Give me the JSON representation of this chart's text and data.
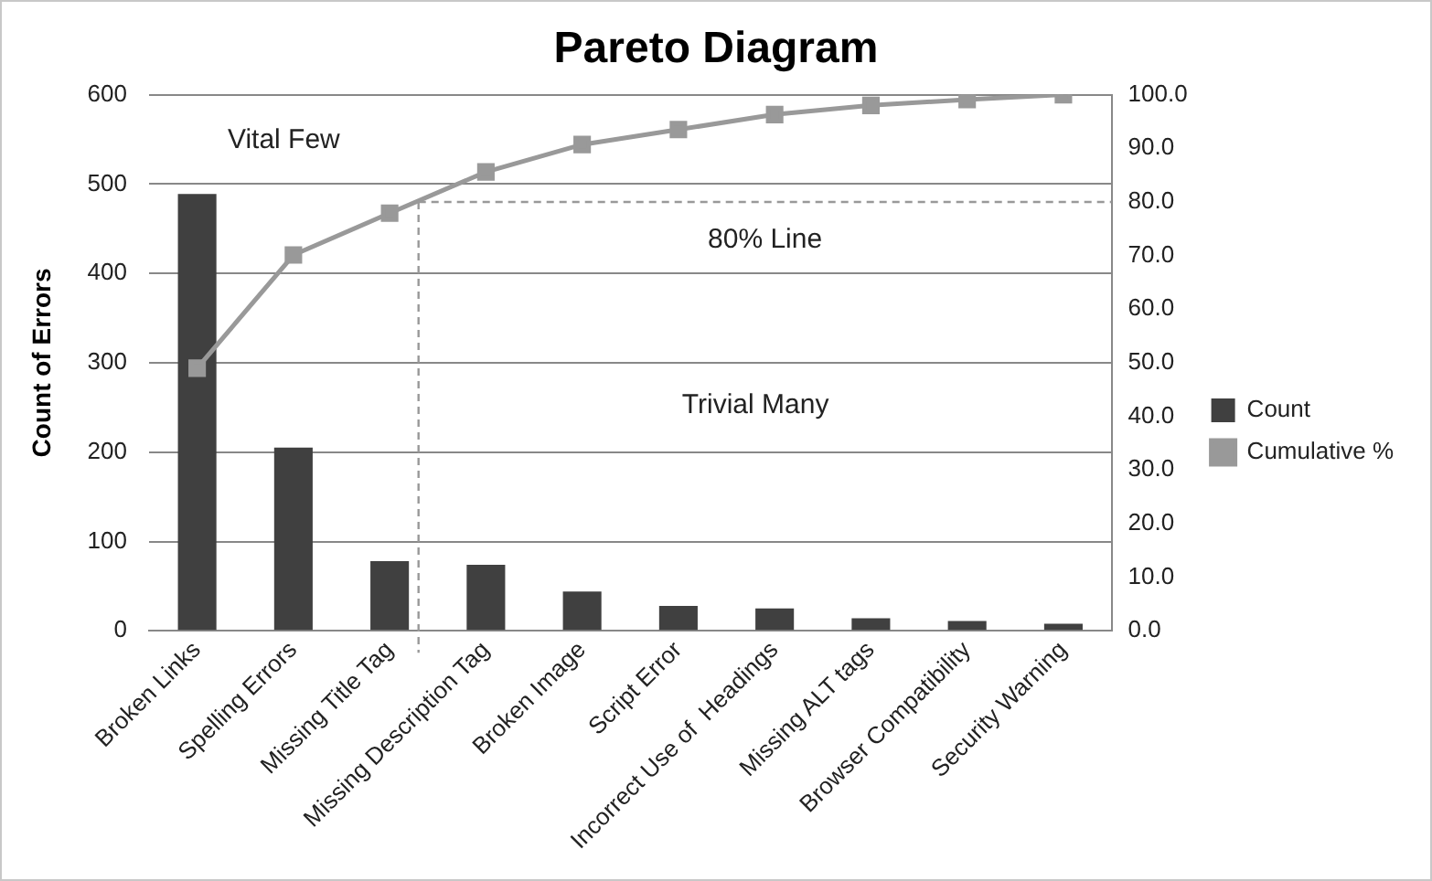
{
  "chart_data": {
    "type": "bar",
    "title": "Pareto Diagram",
    "ylabel": "Count of Errors",
    "categories": [
      "Broken Links",
      "Spelling Errors",
      "Missing Title Tag",
      "Missing Description Tag",
      "Broken Image",
      "Script Error",
      "Incorrect Use of  Headings",
      "Missing ALT tags",
      "Browser Compatibility",
      "Security Warning"
    ],
    "series": [
      {
        "name": "Count",
        "color": "#404040",
        "values": [
          489,
          205,
          78,
          74,
          44,
          28,
          25,
          14,
          11,
          8
        ]
      },
      {
        "name": "Cumulative %",
        "type": "line",
        "axis": "y2",
        "color": "#999999",
        "marker": "square",
        "values": [
          49.0,
          70.1,
          77.9,
          85.6,
          90.7,
          93.5,
          96.3,
          98.0,
          99.1,
          100.0
        ]
      }
    ],
    "ylim": [
      0,
      600
    ],
    "yticks": [
      0,
      100,
      200,
      300,
      400,
      500,
      600
    ],
    "y2lim": [
      0,
      100
    ],
    "y2ticks": [
      {
        "value": 0,
        "label": "0.0"
      },
      {
        "value": 10,
        "label": "10.0"
      },
      {
        "value": 20,
        "label": "20.0"
      },
      {
        "value": 30,
        "label": "30.0"
      },
      {
        "value": 40,
        "label": "40.0"
      },
      {
        "value": 50,
        "label": "50.0"
      },
      {
        "value": 60,
        "label": "60.0"
      },
      {
        "value": 70,
        "label": "70.0"
      },
      {
        "value": 80,
        "label": "80.0"
      },
      {
        "value": 90,
        "label": "90.0"
      },
      {
        "value": 100,
        "label": "100.0"
      }
    ],
    "ref_lines": [
      {
        "axis": "y2",
        "value": 80,
        "label": "80% Line",
        "color": "#999999",
        "line_style": "dashed"
      },
      {
        "axis": "x",
        "value": "Missing Title Tag",
        "color": "#999999",
        "line_style": "dashed"
      }
    ],
    "annotations": [
      "Vital Few",
      "Trivial Many"
    ],
    "grid": "y",
    "legend": "right"
  }
}
